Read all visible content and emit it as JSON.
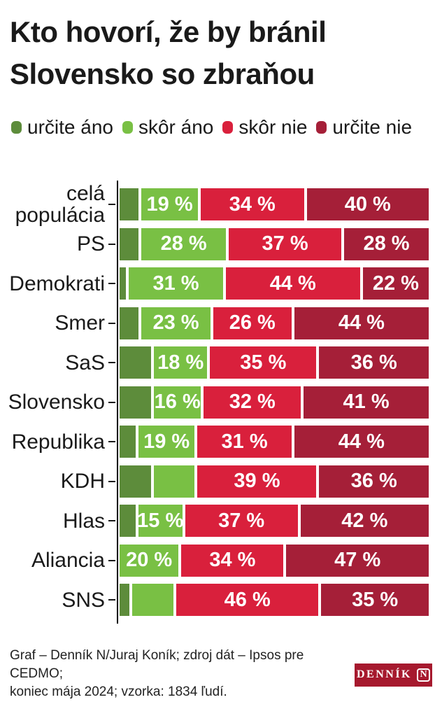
{
  "title_lines": [
    "Kto hovorí, že by bránil",
    "Slovensko so zbraňou"
  ],
  "title": "Kto hovorí, že by bránil Slovensko so zbraňou",
  "legend": [
    {
      "label": "určite áno",
      "color": "#5d8c3b"
    },
    {
      "label": "skôr áno",
      "color": "#79c044"
    },
    {
      "label": "skôr nie",
      "color": "#d9203c"
    },
    {
      "label": "určite nie",
      "color": "#a51f38"
    }
  ],
  "chart_data": {
    "type": "bar",
    "stacked": true,
    "orientation": "horizontal",
    "unit": "%",
    "series_names": [
      "určite áno",
      "skôr áno",
      "skôr nie",
      "určite nie"
    ],
    "categories": [
      "celá populácia",
      "PS",
      "Demokrati",
      "Smer",
      "SaS",
      "Slovensko",
      "Republika",
      "KDH",
      "Hlas",
      "Aliancia",
      "SNS"
    ],
    "rows": [
      {
        "category": "celá populácia",
        "category_lines": [
          "celá",
          "populácia"
        ],
        "values": [
          7,
          19,
          34,
          40
        ],
        "labels": [
          "",
          "19 %",
          "34 %",
          "40 %"
        ]
      },
      {
        "category": "PS",
        "values": [
          7,
          28,
          37,
          28
        ],
        "labels": [
          "",
          "28 %",
          "37 %",
          "28 %"
        ]
      },
      {
        "category": "Demokrati",
        "values": [
          3,
          31,
          44,
          22
        ],
        "labels": [
          "",
          "31 %",
          "44 %",
          "22 %"
        ]
      },
      {
        "category": "Smer",
        "values": [
          7,
          23,
          26,
          44
        ],
        "labels": [
          "",
          "23 %",
          "26 %",
          "44 %"
        ]
      },
      {
        "category": "SaS",
        "values": [
          11,
          18,
          35,
          36
        ],
        "labels": [
          "",
          "18 %",
          "35 %",
          "36 %"
        ]
      },
      {
        "category": "Slovensko",
        "values": [
          11,
          16,
          32,
          41
        ],
        "labels": [
          "",
          "16 %",
          "32 %",
          "41 %"
        ]
      },
      {
        "category": "Republika",
        "values": [
          6,
          19,
          31,
          44
        ],
        "labels": [
          "",
          "19 %",
          "31 %",
          "44 %"
        ]
      },
      {
        "category": "KDH",
        "values": [
          11,
          14,
          39,
          36
        ],
        "labels": [
          "",
          "",
          "39 %",
          "36 %"
        ]
      },
      {
        "category": "Hlas",
        "values": [
          6,
          15,
          37,
          42
        ],
        "labels": [
          "",
          "15 %",
          "37 %",
          "42 %"
        ]
      },
      {
        "category": "Aliancia",
        "values": [
          0,
          20,
          34,
          47
        ],
        "labels": [
          "",
          "20 %",
          "34 %",
          "47 %"
        ]
      },
      {
        "category": "SNS",
        "values": [
          4,
          14,
          46,
          35
        ],
        "labels": [
          "",
          "",
          "46 %",
          "35 %"
        ]
      }
    ]
  },
  "footer": {
    "credit_line1": "Graf – Denník N/Juraj Koník; zdroj dát – Ipsos pre CEDMO;",
    "credit_line2": "koniec mája 2024; vzorka: 1834 ľudí.",
    "logo_text": "DENNÍK",
    "logo_n": "N",
    "logo_color": "#a6192e"
  }
}
